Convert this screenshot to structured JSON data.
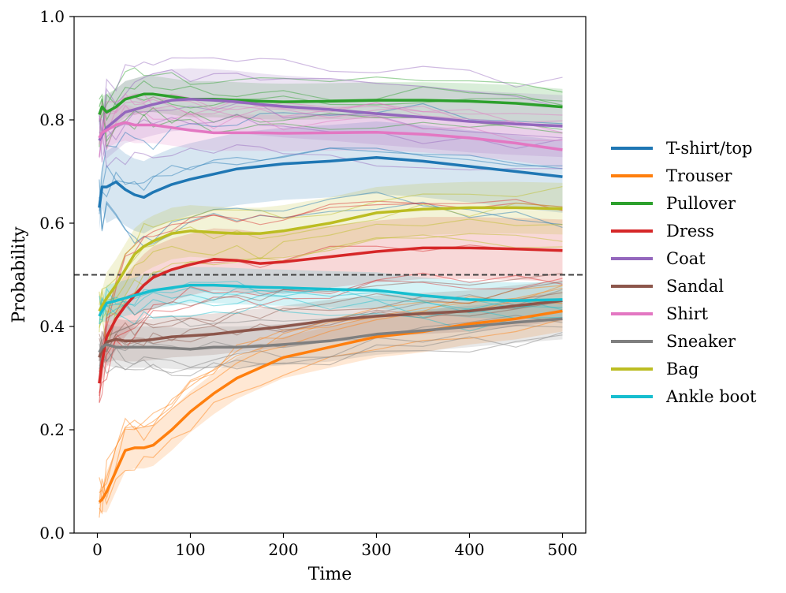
{
  "chart_data": {
    "type": "line",
    "title": "",
    "xlabel": "Time",
    "ylabel": "Probability",
    "xlim": [
      -25,
      525
    ],
    "ylim": [
      0.0,
      1.0
    ],
    "x_ticks": [
      0,
      100,
      200,
      300,
      400,
      500
    ],
    "y_ticks": [
      0.0,
      0.2,
      0.4,
      0.6,
      0.8,
      1.0
    ],
    "x_tick_labels": [
      "0",
      "100",
      "200",
      "300",
      "400",
      "500"
    ],
    "y_tick_labels": [
      "0.0",
      "0.2",
      "0.4",
      "0.6",
      "0.8",
      "1.0"
    ],
    "reference_line": {
      "y": 0.5,
      "style": "dashed",
      "color": "#404040"
    },
    "legend_position": "outside-right",
    "x": [
      2,
      5,
      10,
      20,
      30,
      40,
      50,
      60,
      80,
      100,
      125,
      150,
      175,
      200,
      250,
      300,
      350,
      400,
      450,
      500
    ],
    "series": [
      {
        "name": "T-shirt/top",
        "color": "#1f77b4",
        "band": 0.07,
        "values": [
          0.63,
          0.67,
          0.67,
          0.68,
          0.665,
          0.655,
          0.65,
          0.66,
          0.675,
          0.685,
          0.695,
          0.705,
          0.71,
          0.715,
          0.72,
          0.727,
          0.72,
          0.71,
          0.7,
          0.69
        ]
      },
      {
        "name": "Trouser",
        "color": "#ff7f0e",
        "band": 0.04,
        "values": [
          0.06,
          0.065,
          0.08,
          0.12,
          0.16,
          0.165,
          0.165,
          0.17,
          0.2,
          0.235,
          0.27,
          0.3,
          0.32,
          0.34,
          0.36,
          0.38,
          0.39,
          0.405,
          0.415,
          0.43
        ]
      },
      {
        "name": "Pullover",
        "color": "#2ca02c",
        "band": 0.035,
        "values": [
          0.81,
          0.825,
          0.815,
          0.825,
          0.84,
          0.845,
          0.85,
          0.85,
          0.845,
          0.84,
          0.84,
          0.838,
          0.836,
          0.835,
          0.836,
          0.838,
          0.838,
          0.836,
          0.832,
          0.825
        ]
      },
      {
        "name": "Dress",
        "color": "#d62728",
        "band": 0.06,
        "values": [
          0.29,
          0.33,
          0.38,
          0.415,
          0.44,
          0.46,
          0.48,
          0.495,
          0.51,
          0.52,
          0.53,
          0.528,
          0.522,
          0.525,
          0.535,
          0.545,
          0.552,
          0.552,
          0.55,
          0.547
        ]
      },
      {
        "name": "Coat",
        "color": "#9467bd",
        "band": 0.06,
        "values": [
          0.76,
          0.77,
          0.785,
          0.8,
          0.815,
          0.82,
          0.825,
          0.83,
          0.838,
          0.84,
          0.838,
          0.835,
          0.83,
          0.826,
          0.82,
          0.812,
          0.805,
          0.797,
          0.792,
          0.788
        ]
      },
      {
        "name": "Sandal",
        "color": "#8c564b",
        "band": 0.04,
        "values": [
          0.34,
          0.355,
          0.37,
          0.375,
          0.372,
          0.372,
          0.373,
          0.375,
          0.38,
          0.382,
          0.385,
          0.39,
          0.395,
          0.4,
          0.412,
          0.42,
          0.425,
          0.43,
          0.44,
          0.45
        ]
      },
      {
        "name": "Shirt",
        "color": "#e377c2",
        "band": 0.035,
        "values": [
          0.765,
          0.775,
          0.78,
          0.79,
          0.795,
          0.79,
          0.79,
          0.79,
          0.785,
          0.78,
          0.775,
          0.775,
          0.775,
          0.774,
          0.775,
          0.776,
          0.772,
          0.765,
          0.755,
          0.742
        ]
      },
      {
        "name": "Sneaker",
        "color": "#7f7f7f",
        "band": 0.04,
        "values": [
          0.35,
          0.36,
          0.365,
          0.36,
          0.36,
          0.36,
          0.36,
          0.36,
          0.358,
          0.356,
          0.36,
          0.36,
          0.362,
          0.365,
          0.372,
          0.385,
          0.392,
          0.4,
          0.408,
          0.415
        ]
      },
      {
        "name": "Bag",
        "color": "#bcbd22",
        "band": 0.05,
        "values": [
          0.43,
          0.44,
          0.455,
          0.48,
          0.51,
          0.54,
          0.555,
          0.565,
          0.58,
          0.585,
          0.582,
          0.58,
          0.58,
          0.585,
          0.6,
          0.62,
          0.627,
          0.63,
          0.63,
          0.628
        ]
      },
      {
        "name": "Ankle boot",
        "color": "#17becf",
        "band": 0.035,
        "values": [
          0.42,
          0.43,
          0.445,
          0.45,
          0.455,
          0.46,
          0.465,
          0.47,
          0.475,
          0.48,
          0.48,
          0.478,
          0.476,
          0.475,
          0.472,
          0.47,
          0.46,
          0.452,
          0.45,
          0.452
        ]
      }
    ]
  }
}
